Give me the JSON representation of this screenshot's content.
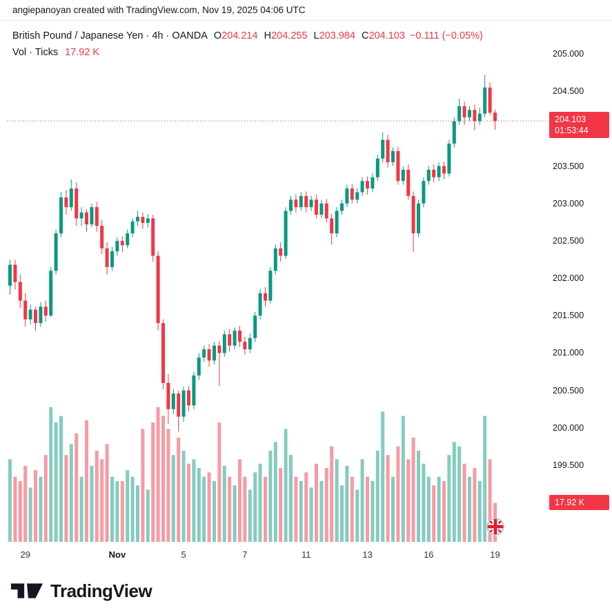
{
  "attribution": "angiepanoyan created with TradingView.com, Nov 19, 2025 04:06 UTC",
  "legend": {
    "title": "British Pound / Japanese Yen · 4h · OANDA",
    "ohlc": {
      "o_label": "O",
      "o": "204.214",
      "h_label": "H",
      "h": "204.255",
      "l_label": "L",
      "l": "203.984",
      "c_label": "C",
      "c": "204.103",
      "change": "−0.111 (−0.05%)"
    },
    "volume_label": "Vol · Ticks",
    "volume_value": "17.92 K"
  },
  "price_axis": {
    "badge_price": "204.103",
    "badge_countdown": "01:53:44",
    "volume_badge": "17.92 K"
  },
  "footer": {
    "brand": "TradingView"
  },
  "colors": {
    "up": "#089981",
    "down": "#f23645",
    "vol_up": "rgba(8,153,129,0.5)",
    "vol_down": "rgba(242,54,69,0.5)",
    "badge": "#f23645",
    "text": "#131722"
  },
  "chart_data": {
    "type": "candlestick",
    "title": "British Pound / Japanese Yen · 4h · OANDA",
    "interval": "4h",
    "exchange": "OANDA",
    "volume_indicator": "Vol · Ticks",
    "last": {
      "open": 204.214,
      "high": 204.255,
      "low": 203.984,
      "close": 204.103,
      "change": -0.111,
      "change_pct": -0.05,
      "countdown": "01:53:44",
      "volume_k": 17.92
    },
    "y_axis": {
      "min": 199.3,
      "max": 205.3
    },
    "price_axis_labels": [
      "205.000",
      "204.500",
      "203.500",
      "203.000",
      "202.500",
      "202.000",
      "201.500",
      "201.000",
      "200.500",
      "200.000",
      "199.500"
    ],
    "time_labels": [
      {
        "text": "29",
        "idx": 3
      },
      {
        "text": "Nov",
        "idx": 21,
        "bold": true
      },
      {
        "text": "5",
        "idx": 34
      },
      {
        "text": "7",
        "idx": 46
      },
      {
        "text": "11",
        "idx": 58
      },
      {
        "text": "13",
        "idx": 70
      },
      {
        "text": "16",
        "idx": 82
      },
      {
        "text": "19",
        "idx": 95
      }
    ],
    "candle_format": [
      "open",
      "high",
      "low",
      "close",
      "volume_k"
    ],
    "candles": [
      [
        201.9,
        202.25,
        201.78,
        202.18,
        38
      ],
      [
        202.18,
        202.25,
        201.85,
        201.95,
        30
      ],
      [
        201.95,
        202.05,
        201.6,
        201.7,
        28
      ],
      [
        201.7,
        201.8,
        201.35,
        201.45,
        35
      ],
      [
        201.45,
        201.65,
        201.38,
        201.58,
        25
      ],
      [
        201.58,
        201.62,
        201.3,
        201.4,
        33
      ],
      [
        201.4,
        201.68,
        201.35,
        201.62,
        30
      ],
      [
        201.62,
        201.7,
        201.42,
        201.5,
        40
      ],
      [
        201.5,
        202.15,
        201.48,
        202.1,
        62
      ],
      [
        202.1,
        202.65,
        202.05,
        202.6,
        55
      ],
      [
        202.6,
        203.15,
        202.55,
        203.08,
        58
      ],
      [
        203.08,
        203.18,
        202.85,
        202.95,
        40
      ],
      [
        202.95,
        203.32,
        202.9,
        203.2,
        45
      ],
      [
        203.2,
        203.28,
        202.7,
        202.8,
        50
      ],
      [
        202.8,
        202.95,
        202.7,
        202.88,
        30
      ],
      [
        202.88,
        202.92,
        202.62,
        202.72,
        56
      ],
      [
        202.72,
        203.0,
        202.68,
        202.95,
        35
      ],
      [
        202.95,
        203.02,
        202.62,
        202.7,
        42
      ],
      [
        202.7,
        202.78,
        202.32,
        202.4,
        38
      ],
      [
        202.4,
        202.48,
        202.05,
        202.15,
        45
      ],
      [
        202.15,
        202.42,
        202.1,
        202.36,
        30
      ],
      [
        202.36,
        202.55,
        202.3,
        202.5,
        28
      ],
      [
        202.5,
        202.56,
        202.35,
        202.44,
        28
      ],
      [
        202.44,
        202.65,
        202.4,
        202.6,
        33
      ],
      [
        202.6,
        202.8,
        202.55,
        202.76,
        30
      ],
      [
        202.76,
        202.9,
        202.7,
        202.82,
        26
      ],
      [
        202.82,
        202.88,
        202.66,
        202.74,
        52
      ],
      [
        202.74,
        202.86,
        202.68,
        202.8,
        24
      ],
      [
        202.8,
        202.85,
        202.22,
        202.3,
        55
      ],
      [
        202.3,
        202.36,
        201.3,
        201.4,
        62
      ],
      [
        201.4,
        201.45,
        200.52,
        200.6,
        58
      ],
      [
        200.6,
        200.72,
        200.05,
        200.25,
        52
      ],
      [
        200.25,
        200.52,
        200.18,
        200.46,
        40
      ],
      [
        200.46,
        200.5,
        199.95,
        200.15,
        48
      ],
      [
        200.15,
        200.55,
        200.08,
        200.5,
        42
      ],
      [
        200.5,
        200.56,
        200.22,
        200.3,
        36
      ],
      [
        200.3,
        200.75,
        200.25,
        200.7,
        38
      ],
      [
        200.7,
        201.0,
        200.64,
        200.94,
        34
      ],
      [
        200.94,
        201.1,
        200.88,
        201.05,
        30
      ],
      [
        201.05,
        201.12,
        200.82,
        200.9,
        32
      ],
      [
        200.9,
        201.15,
        200.85,
        201.1,
        28
      ],
      [
        201.1,
        201.16,
        200.56,
        201.0,
        55
      ],
      [
        201.0,
        201.3,
        200.95,
        201.25,
        35
      ],
      [
        201.25,
        201.32,
        201.02,
        201.1,
        30
      ],
      [
        201.1,
        201.34,
        201.05,
        201.3,
        26
      ],
      [
        201.3,
        201.36,
        201.08,
        201.15,
        38
      ],
      [
        201.15,
        201.22,
        200.98,
        201.05,
        30
      ],
      [
        201.05,
        201.26,
        201.0,
        201.2,
        24
      ],
      [
        201.2,
        201.55,
        201.15,
        201.5,
        32
      ],
      [
        201.5,
        201.85,
        201.45,
        201.8,
        36
      ],
      [
        201.8,
        201.88,
        201.62,
        201.7,
        30
      ],
      [
        201.7,
        202.15,
        201.66,
        202.1,
        42
      ],
      [
        202.1,
        202.45,
        202.05,
        202.4,
        46
      ],
      [
        202.4,
        202.48,
        202.22,
        202.3,
        34
      ],
      [
        202.3,
        202.95,
        202.26,
        202.9,
        52
      ],
      [
        202.9,
        203.1,
        202.85,
        203.05,
        40
      ],
      [
        203.05,
        203.12,
        202.88,
        202.95,
        30
      ],
      [
        202.95,
        203.15,
        202.9,
        203.1,
        28
      ],
      [
        203.1,
        203.16,
        202.88,
        202.95,
        32
      ],
      [
        202.95,
        203.1,
        202.9,
        203.05,
        25
      ],
      [
        203.05,
        203.12,
        202.8,
        202.85,
        36
      ],
      [
        202.85,
        203.05,
        202.8,
        203.0,
        28
      ],
      [
        203.0,
        203.06,
        202.75,
        202.8,
        34
      ],
      [
        202.8,
        202.86,
        202.45,
        202.6,
        44
      ],
      [
        202.6,
        202.95,
        202.55,
        202.9,
        38
      ],
      [
        202.9,
        203.05,
        202.85,
        203.0,
        26
      ],
      [
        203.0,
        203.25,
        202.95,
        203.2,
        35
      ],
      [
        203.2,
        203.26,
        203.0,
        203.05,
        30
      ],
      [
        203.05,
        203.2,
        203.0,
        203.15,
        24
      ],
      [
        203.15,
        203.35,
        203.1,
        203.3,
        38
      ],
      [
        203.3,
        203.36,
        203.12,
        203.2,
        30
      ],
      [
        203.2,
        203.4,
        203.15,
        203.35,
        28
      ],
      [
        203.35,
        203.65,
        203.3,
        203.6,
        42
      ],
      [
        203.6,
        203.95,
        203.55,
        203.85,
        60
      ],
      [
        203.85,
        203.92,
        203.48,
        203.55,
        40
      ],
      [
        203.55,
        203.75,
        203.5,
        203.7,
        30
      ],
      [
        203.7,
        203.76,
        203.25,
        203.3,
        44
      ],
      [
        203.3,
        203.5,
        203.25,
        203.45,
        58
      ],
      [
        203.45,
        203.52,
        203.05,
        203.1,
        38
      ],
      [
        203.1,
        203.16,
        202.35,
        202.6,
        48
      ],
      [
        202.6,
        203.05,
        202.55,
        203.0,
        42
      ],
      [
        203.0,
        203.35,
        202.95,
        203.3,
        36
      ],
      [
        203.3,
        203.5,
        203.25,
        203.45,
        30
      ],
      [
        203.45,
        203.52,
        203.28,
        203.35,
        26
      ],
      [
        203.35,
        203.55,
        203.3,
        203.5,
        30
      ],
      [
        203.5,
        203.56,
        203.32,
        203.4,
        28
      ],
      [
        203.4,
        203.85,
        203.36,
        203.8,
        40
      ],
      [
        203.8,
        204.15,
        203.75,
        204.1,
        46
      ],
      [
        204.1,
        204.4,
        204.05,
        204.3,
        44
      ],
      [
        204.3,
        204.36,
        204.05,
        204.15,
        36
      ],
      [
        204.15,
        204.3,
        204.1,
        204.25,
        30
      ],
      [
        204.25,
        204.32,
        203.98,
        204.1,
        34
      ],
      [
        204.1,
        204.28,
        204.05,
        204.2,
        28
      ],
      [
        204.2,
        204.72,
        204.15,
        204.55,
        58
      ],
      [
        204.55,
        204.62,
        204.18,
        204.214,
        38
      ],
      [
        204.214,
        204.255,
        203.984,
        204.103,
        17.92
      ]
    ]
  }
}
